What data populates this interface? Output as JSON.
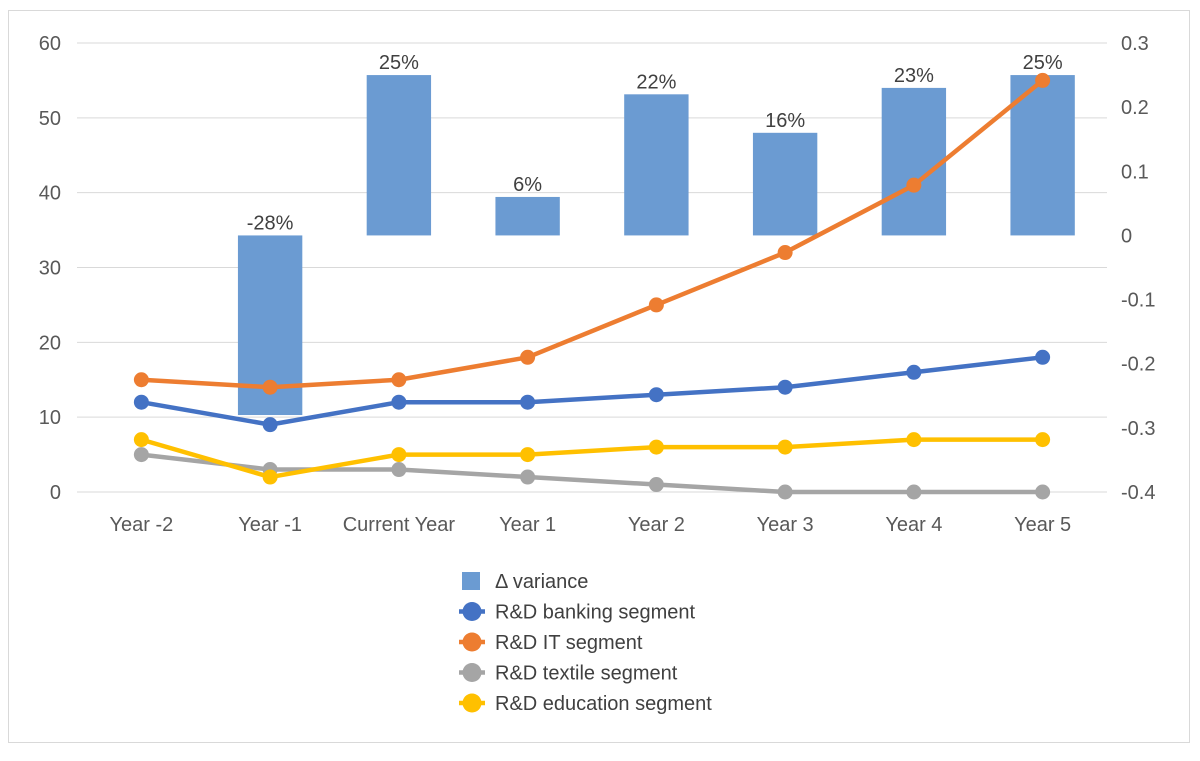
{
  "chart_data": {
    "type": "bar",
    "categories": [
      "Year -2",
      "Year -1",
      "Current Year",
      "Year 1",
      "Year 2",
      "Year 3",
      "Year 4",
      "Year 5"
    ],
    "bars": {
      "name": "Δ variance",
      "axis": "right",
      "values": [
        null,
        -0.28,
        0.25,
        0.06,
        0.22,
        0.16,
        0.23,
        0.25
      ],
      "labels": [
        "",
        "-28%",
        "25%",
        "6%",
        "22%",
        "16%",
        "23%",
        "25%"
      ],
      "color": "#6b9bd2"
    },
    "series": [
      {
        "name": "R&D banking segment",
        "type": "line",
        "axis": "left",
        "color": "#4472c4",
        "values": [
          12,
          9,
          12,
          12,
          13,
          14,
          16,
          18
        ]
      },
      {
        "name": "R&D IT segment",
        "type": "line",
        "axis": "left",
        "color": "#ed7d31",
        "values": [
          15,
          14,
          15,
          18,
          25,
          32,
          41,
          55
        ]
      },
      {
        "name": "R&D textile segment",
        "type": "line",
        "axis": "left",
        "color": "#a5a5a5",
        "values": [
          5,
          3,
          3,
          2,
          1,
          0,
          0,
          0
        ]
      },
      {
        "name": "R&D education segment",
        "type": "line",
        "axis": "left",
        "color": "#ffc000",
        "values": [
          7,
          2,
          5,
          5,
          6,
          6,
          7,
          7
        ]
      }
    ],
    "y_left": {
      "min": 0,
      "max": 60,
      "ticks": [
        "0",
        "10",
        "20",
        "30",
        "40",
        "50",
        "60"
      ]
    },
    "y_right": {
      "min": -0.4,
      "max": 0.3,
      "ticks": [
        "-0.4",
        "-0.3",
        "-0.2",
        "-0.1",
        "0",
        "0.1",
        "0.2",
        "0.3"
      ]
    },
    "grid": true,
    "legend_position": "bottom",
    "title": "",
    "xlabel": "",
    "ylabel": ""
  }
}
